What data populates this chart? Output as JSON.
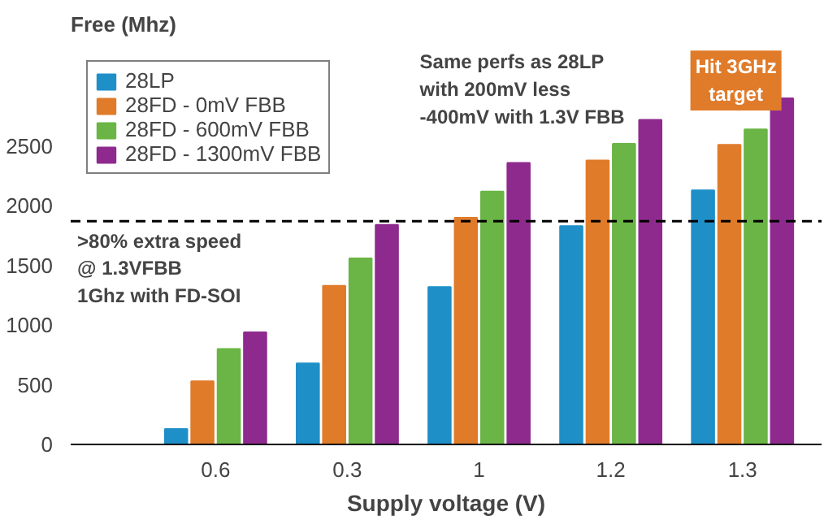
{
  "chart_data": {
    "type": "bar",
    "ylabel": "Free (Mhz)",
    "xlabel": "Supply voltage (V)",
    "categories": [
      "0.6",
      "0.3",
      "1",
      "1.2",
      "1.3"
    ],
    "series": [
      {
        "name": "28LP",
        "color": "#1f8fc8",
        "values": [
          130,
          680,
          1320,
          1830,
          2130
        ]
      },
      {
        "name": "28FD - 0mV FBB",
        "color": "#e07b2a",
        "values": [
          530,
          1330,
          1900,
          2380,
          2510
        ]
      },
      {
        "name": "28FD - 600mV FBB",
        "color": "#6ab545",
        "values": [
          800,
          1560,
          2120,
          2520,
          2640
        ]
      },
      {
        "name": "28FD - 1300mV FBB",
        "color": "#8e2a8e",
        "values": [
          940,
          1840,
          2360,
          2720,
          2900
        ]
      }
    ],
    "ylim": [
      0,
      3350
    ],
    "yticks": [
      0,
      500,
      1000,
      1500,
      2000,
      2500
    ],
    "ref_lines": [
      {
        "axis": "y",
        "value": 1870,
        "line_style": "dashed",
        "color": "#000000"
      }
    ],
    "annotations": [
      ">80% extra speed\n@ 1.3VFBB\n1Ghz with FD-SOI",
      "Same perfs as 28LP\nwith 200mV less\n-400mV with 1.3V FBB",
      "Hit 3GHz\ntarget"
    ],
    "grid": false,
    "legend": "top left"
  }
}
